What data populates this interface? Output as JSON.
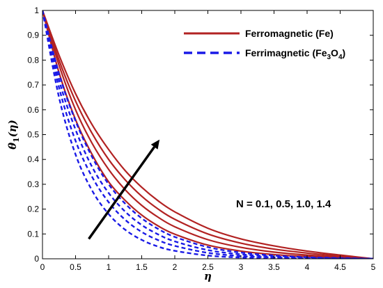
{
  "chart_data": {
    "type": "line",
    "xlabel": "η",
    "ylabel": {
      "base": "θ",
      "sub": "1",
      "arg": "(η)"
    },
    "xlim": [
      0,
      5
    ],
    "ylim": [
      0,
      1
    ],
    "xticks": [
      "0",
      "0.5",
      "1",
      "1.5",
      "2",
      "2.5",
      "3",
      "3.5",
      "4",
      "4.5",
      "5"
    ],
    "yticks": [
      "0",
      "0.1",
      "0.2",
      "0.3",
      "0.4",
      "0.5",
      "0.6",
      "0.7",
      "0.8",
      "0.9",
      "1"
    ],
    "grid": false,
    "legend_position": "top-right",
    "annotation": "N = 0.1, 0.5, 1.0, 1.4",
    "x": [
      0,
      0.25,
      0.5,
      0.75,
      1,
      1.25,
      1.5,
      1.75,
      2,
      2.5,
      3,
      3.5,
      4,
      4.5,
      5
    ],
    "series": [
      {
        "name": "Ferromagnetic (Fe)",
        "group": "Fe",
        "color": "#b22222",
        "style": "solid",
        "N": 0.1,
        "values": [
          1,
          0.75,
          0.56,
          0.42,
          0.31,
          0.235,
          0.176,
          0.132,
          0.099,
          0.055,
          0.031,
          0.017,
          0.009,
          0.004,
          0
        ]
      },
      {
        "name": "",
        "group": "Fe",
        "color": "#b22222",
        "style": "solid",
        "N": 0.5,
        "values": [
          1,
          0.78,
          0.6,
          0.465,
          0.36,
          0.278,
          0.215,
          0.167,
          0.129,
          0.077,
          0.046,
          0.027,
          0.015,
          0.007,
          0
        ]
      },
      {
        "name": "",
        "group": "Fe",
        "color": "#b22222",
        "style": "solid",
        "N": 1.0,
        "values": [
          1,
          0.8,
          0.635,
          0.505,
          0.4,
          0.318,
          0.252,
          0.2,
          0.159,
          0.1,
          0.063,
          0.039,
          0.023,
          0.011,
          0
        ]
      },
      {
        "name": "",
        "group": "Fe",
        "color": "#b22222",
        "style": "solid",
        "N": 1.4,
        "values": [
          1,
          0.82,
          0.665,
          0.54,
          0.44,
          0.355,
          0.288,
          0.233,
          0.189,
          0.123,
          0.08,
          0.052,
          0.031,
          0.015,
          0
        ]
      },
      {
        "name": "Ferrimagnetic (Fe3O4)",
        "group": "Fe3O4",
        "color": "#1a1ae6",
        "style": "dashed",
        "N": 0.1,
        "values": [
          1,
          0.65,
          0.42,
          0.275,
          0.18,
          0.117,
          0.076,
          0.049,
          0.032,
          0.013,
          0.005,
          0.002,
          0.001,
          0,
          0
        ]
      },
      {
        "name": "",
        "group": "Fe3O4",
        "color": "#1a1ae6",
        "style": "dashed",
        "N": 0.5,
        "values": [
          1,
          0.69,
          0.475,
          0.33,
          0.228,
          0.157,
          0.108,
          0.075,
          0.052,
          0.024,
          0.011,
          0.005,
          0.002,
          0.001,
          0
        ]
      },
      {
        "name": "",
        "group": "Fe3O4",
        "color": "#1a1ae6",
        "style": "dashed",
        "N": 1.0,
        "values": [
          1,
          0.72,
          0.52,
          0.37,
          0.265,
          0.19,
          0.136,
          0.098,
          0.07,
          0.035,
          0.018,
          0.009,
          0.004,
          0.002,
          0
        ]
      },
      {
        "name": "",
        "group": "Fe3O4",
        "color": "#1a1ae6",
        "style": "dashed",
        "N": 1.4,
        "values": [
          1,
          0.745,
          0.555,
          0.41,
          0.3,
          0.222,
          0.163,
          0.12,
          0.088,
          0.047,
          0.025,
          0.013,
          0.006,
          0.003,
          0
        ]
      }
    ],
    "legend": [
      {
        "label": "Ferromagnetic (Fe)",
        "color": "#b22222",
        "style": "solid"
      },
      {
        "label_parts": [
          "Ferrimagnetic (Fe",
          "3",
          "O",
          "4",
          ")"
        ],
        "label": "Ferrimagnetic (Fe3O4)",
        "color": "#1a1ae6",
        "style": "dashed"
      }
    ],
    "arrow": {
      "from": [
        0.7,
        0.08
      ],
      "to": [
        1.77,
        0.48
      ],
      "meaning": "increasing N"
    }
  }
}
